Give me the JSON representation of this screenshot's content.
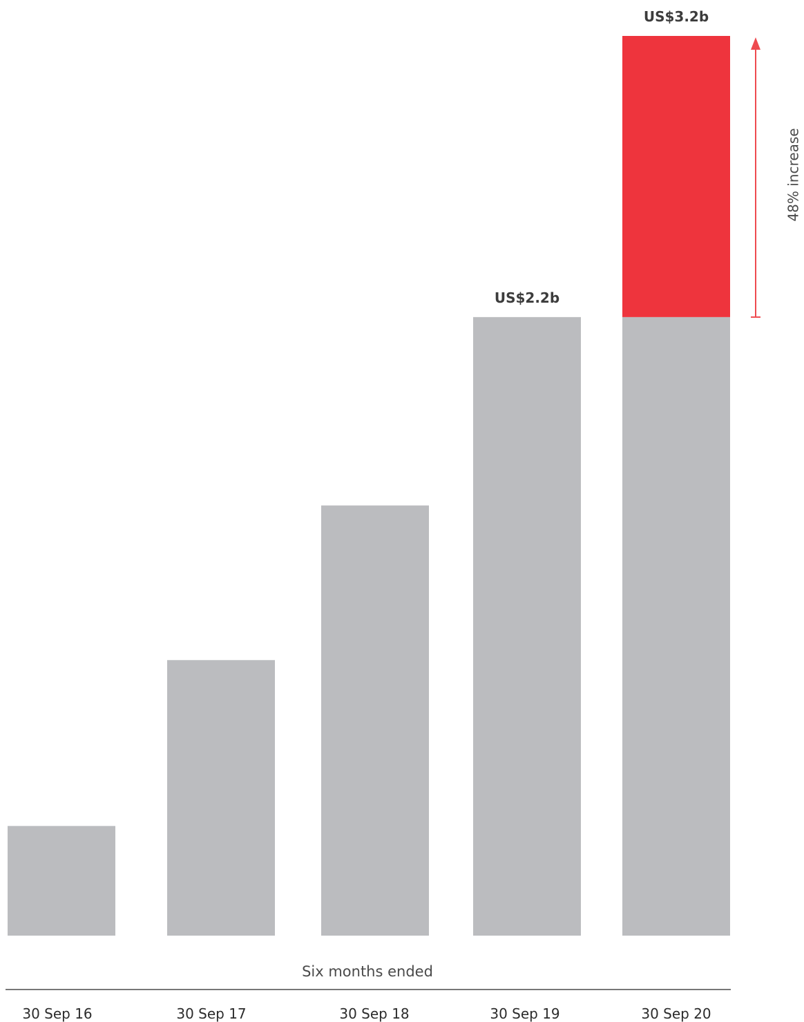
{
  "chart_data": {
    "type": "bar",
    "categories": [
      "30 Sep 16",
      "30 Sep 17",
      "30 Sep 18",
      "30 Sep 19",
      "30 Sep 20"
    ],
    "values": [
      0.39,
      0.98,
      1.53,
      2.2,
      3.2
    ],
    "base_values": [
      0.39,
      0.98,
      1.53,
      2.2,
      2.2
    ],
    "increase_values": [
      0,
      0,
      0,
      0,
      1.0
    ],
    "data_labels": [
      "",
      "",
      "",
      "US$2.2b",
      "US$3.2b"
    ],
    "xlabel": "Six months ended",
    "ylabel": "",
    "ylim": [
      0,
      3.2
    ],
    "grid": false,
    "annotation": "48% increase",
    "colors": {
      "base": "#bbbcbf",
      "increase": "#ee343d",
      "arrow": "#ee4a4f",
      "axis_line": "#4a4a4a"
    }
  }
}
